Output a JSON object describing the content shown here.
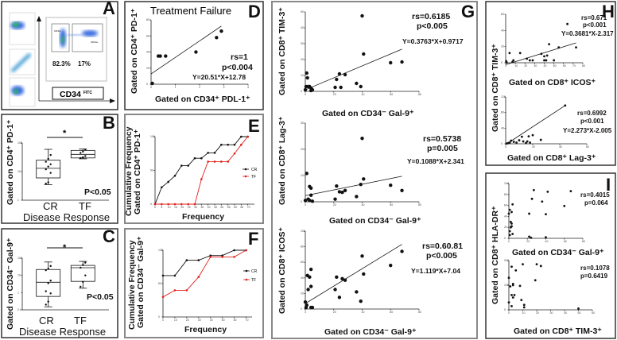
{
  "figure": {
    "panel_letters": {
      "A": "A",
      "B": "B",
      "C": "C",
      "D": "D",
      "E": "E",
      "F": "F",
      "G": "G",
      "H": "H",
      "I": "I"
    },
    "colors": {
      "cr": "#111111",
      "tf": "#e0201b",
      "flow_high": "#2ec24a",
      "flow_low": "#3a6de0"
    }
  },
  "panel_a": {
    "gate_left_pct": "82.3%",
    "gate_right_pct": "17%",
    "x_label": "CD34",
    "x_label_sup": "FITC",
    "gate_left_label": "CD34-",
    "gate_right_label": "CD34+"
  },
  "panel_b": {
    "ylabel": "Gated on CD4⁺ PD-1⁺",
    "xlabel": "Disease Response",
    "sig": "*",
    "p": "P<0.05"
  },
  "panel_c": {
    "ylabel": "Gated on CD34⁻ Gal-9⁺",
    "xlabel": "Disease Response",
    "sig": "*",
    "p": "P<0.05"
  },
  "panel_d": {
    "title": "Treatment Failure",
    "ylabel": "Gated on CD4⁺ PD-1⁺",
    "xlabel": "Gated on CD34⁺ PDL-1⁺",
    "rs": "rs=1",
    "p": "p<0.004",
    "eq": "Y=20.51*X+12.78"
  },
  "panel_e": {
    "ylabel1": "Cumulative Frequency",
    "ylabel2": "Gated on CD4⁺ PD-1⁺",
    "xlabel": "Frequency",
    "legend_cr": "CR",
    "legend_tf": "TF"
  },
  "panel_f": {
    "ylabel1": "Cumulative Frequency",
    "ylabel2": "Gated on CD34⁻ Gal-9⁺",
    "xlabel": "Frequency",
    "legend_cr": "CR",
    "legend_tf": "TF"
  },
  "panel_g": {
    "g1": {
      "ylabel": "Gated on CD8⁺ TIM-3⁺",
      "xlabel": "Gated on CD34⁻ Gal-9⁺",
      "rs": "rs=0.6185",
      "p": "p<0.005",
      "eq": "Y=0.3763*X+0.9717"
    },
    "g2": {
      "ylabel": "Gated on CD8⁺ Lag-3⁺",
      "xlabel": "Gated on CD34⁻ Gal-9⁺",
      "rs": "rs=0.5738",
      "p": "p=0.005",
      "eq": "Y=0.1088*X+2.341"
    },
    "g3": {
      "ylabel": "Gated on CD8⁺ ICOS⁺",
      "xlabel": "Gated on CD34⁻ Gal-9⁺",
      "rs": "rs=0.60.81",
      "p": "p<0.005",
      "eq": "Y=1.119*X+7.04"
    }
  },
  "panel_h": {
    "ylabel": "Gated on CD8⁺ TIM-3⁺",
    "h1": {
      "xlabel": "Gated on CD8⁺ ICOS⁺",
      "rs": "rs=0.671",
      "p": "p<0.001",
      "eq": "Y=0.3681*X-2.317"
    },
    "h2": {
      "xlabel": "Gated on CD8⁺ Lag-3⁺",
      "rs": "rs=0.6992",
      "p": "p<0.001",
      "eq": "Y=2.273*X-2.005"
    }
  },
  "panel_i": {
    "ylabel": "Gated on CD8⁺ HLA-DR⁺",
    "i1": {
      "xlabel": "Gated on CD34⁻ Gal-9⁺",
      "rs": "rs=0.4015",
      "p": "p=0.064"
    },
    "i2": {
      "xlabel": "Gated on CD8⁺ TIM-3⁺",
      "rs": "rs=0.1078",
      "p": "p=0.6419"
    }
  },
  "chart_data": [
    {
      "id": "B",
      "type": "box",
      "scale": "log",
      "ylim": [
        1,
        100
      ],
      "categories": [
        "CR",
        "TF"
      ],
      "boxes": [
        {
          "min": 3.5,
          "q1": 6,
          "median": 13,
          "q3": 25,
          "max": 60,
          "points": [
            3.8,
            4.2,
            9,
            12,
            15,
            18,
            22,
            28,
            38
          ]
        },
        {
          "min": 28,
          "q1": 30,
          "median": 40,
          "q3": 55,
          "max": 62,
          "points": [
            30,
            32,
            35,
            45,
            50,
            58
          ]
        }
      ]
    },
    {
      "id": "C",
      "type": "box",
      "scale": "log",
      "ylim": [
        0.1,
        100
      ],
      "categories": [
        "CR",
        "TF"
      ],
      "boxes": [
        {
          "min": 0.15,
          "q1": 0.6,
          "median": 4,
          "q3": 22,
          "max": 60,
          "points": [
            0.2,
            0.3,
            0.9,
            1.2,
            3.5,
            5,
            20,
            25,
            35
          ]
        },
        {
          "min": 1.8,
          "q1": 4.5,
          "median": 28,
          "q3": 38,
          "max": 65,
          "points": [
            2.2,
            4.2,
            10,
            28,
            40,
            55
          ]
        }
      ]
    },
    {
      "id": "D",
      "type": "scatter",
      "xlim": [
        0,
        4
      ],
      "ylim": [
        0,
        80
      ],
      "xticks": [
        0,
        1,
        2,
        3,
        4
      ],
      "yticks": [
        0,
        20,
        40,
        60,
        80
      ],
      "points": [
        [
          0.05,
          1
        ],
        [
          0.3,
          35
        ],
        [
          0.38,
          35
        ],
        [
          0.6,
          35
        ],
        [
          1.85,
          40
        ],
        [
          2.7,
          58
        ],
        [
          2.9,
          66
        ]
      ],
      "fit": {
        "slope": 20.51,
        "intercept": 12.78,
        "xrange": [
          0,
          2.9
        ]
      }
    },
    {
      "id": "E",
      "type": "line",
      "xlim": [
        0,
        75
      ],
      "ylim": [
        0,
        100
      ],
      "xticks": [
        0,
        5,
        10,
        15,
        20,
        25,
        30,
        35,
        40,
        45,
        50,
        55,
        60,
        65,
        70
      ],
      "yticks": [
        0,
        50,
        100
      ],
      "series": [
        {
          "name": "CR",
          "x": [
            0,
            5,
            10,
            15,
            20,
            25,
            30,
            35,
            40,
            45,
            50,
            55,
            60,
            65,
            70
          ],
          "y": [
            0,
            25,
            33,
            42,
            57,
            57,
            68,
            68,
            76,
            76,
            88,
            88,
            88,
            100,
            100
          ]
        },
        {
          "name": "TF",
          "x": [
            0,
            5,
            10,
            15,
            20,
            25,
            30,
            35,
            40,
            45,
            50,
            55,
            60,
            65,
            70
          ],
          "y": [
            0,
            0,
            0,
            0,
            0,
            0,
            0,
            37,
            63,
            63,
            63,
            63,
            75,
            88,
            100
          ]
        }
      ]
    },
    {
      "id": "F",
      "type": "line",
      "xlim": [
        0,
        75
      ],
      "ylim": [
        0,
        100
      ],
      "xticks": [
        0,
        10,
        20,
        30,
        40,
        50,
        60,
        70
      ],
      "yticks": [
        0,
        50,
        100
      ],
      "series": [
        {
          "name": "CR",
          "x": [
            0,
            10,
            20,
            30,
            40,
            50,
            60,
            70
          ],
          "y": [
            62,
            62,
            85,
            85,
            92,
            92,
            100,
            100
          ]
        },
        {
          "name": "TF",
          "x": [
            0,
            10,
            20,
            30,
            40,
            50,
            60,
            70
          ],
          "y": [
            30,
            40,
            40,
            60,
            90,
            90,
            90,
            100
          ]
        }
      ]
    },
    {
      "id": "G1",
      "type": "scatter",
      "xlim": [
        0,
        80
      ],
      "ylim": [
        0,
        50
      ],
      "xticks": [
        0,
        20,
        40,
        60,
        80
      ],
      "yticks": [
        0,
        10,
        20,
        30,
        40,
        50
      ],
      "points": [
        [
          0,
          1
        ],
        [
          0.5,
          3
        ],
        [
          1,
          11.5
        ],
        [
          1.5,
          8.5
        ],
        [
          2,
          3
        ],
        [
          3,
          3
        ],
        [
          4,
          2
        ],
        [
          5,
          1
        ],
        [
          4,
          0.5
        ],
        [
          21,
          2.5
        ],
        [
          22,
          7.5
        ],
        [
          24,
          11
        ],
        [
          25,
          2.5
        ],
        [
          28,
          10.5
        ],
        [
          36,
          5
        ],
        [
          39,
          3
        ],
        [
          40,
          47.5
        ],
        [
          41,
          23.5
        ],
        [
          60,
          18
        ],
        [
          68,
          18.5
        ]
      ],
      "fit": {
        "slope": 0.3763,
        "intercept": 0.9717,
        "xrange": [
          0,
          68
        ]
      }
    },
    {
      "id": "G2",
      "type": "scatter",
      "xlim": [
        0,
        80
      ],
      "ylim": [
        0,
        30
      ],
      "xticks": [
        0,
        20,
        40,
        60,
        80
      ],
      "yticks": [
        0,
        10,
        20,
        30
      ],
      "points": [
        [
          0,
          0.5
        ],
        [
          1,
          10.8
        ],
        [
          2,
          1
        ],
        [
          3,
          5.8
        ],
        [
          4,
          5.2
        ],
        [
          4,
          2.5
        ],
        [
          5,
          0.2
        ],
        [
          3,
          0.5
        ],
        [
          21,
          1
        ],
        [
          22,
          6
        ],
        [
          24,
          3.8
        ],
        [
          26,
          3.6
        ],
        [
          28,
          4.3
        ],
        [
          36,
          2
        ],
        [
          39,
          6.6
        ],
        [
          40,
          24.2
        ],
        [
          41,
          8.7
        ],
        [
          60,
          6.3
        ],
        [
          68,
          4.3
        ]
      ],
      "fit": {
        "slope": 0.1088,
        "intercept": 2.341,
        "xrange": [
          0,
          68
        ]
      }
    },
    {
      "id": "G3",
      "type": "scatter",
      "xlim": [
        0,
        80
      ],
      "ylim": [
        0,
        100
      ],
      "xticks": [
        0,
        20,
        40,
        60,
        80
      ],
      "yticks": [
        0,
        20,
        40,
        60,
        80,
        100
      ],
      "points": [
        [
          0,
          9
        ],
        [
          0.5,
          2
        ],
        [
          1,
          5
        ],
        [
          1.5,
          43
        ],
        [
          2,
          25
        ],
        [
          3,
          41
        ],
        [
          4,
          51
        ],
        [
          4,
          29
        ],
        [
          4,
          2
        ],
        [
          5,
          2
        ],
        [
          21,
          25
        ],
        [
          22,
          41
        ],
        [
          24,
          15
        ],
        [
          26,
          39
        ],
        [
          28,
          37
        ],
        [
          36,
          22
        ],
        [
          39,
          10
        ],
        [
          40,
          68
        ],
        [
          41,
          45
        ],
        [
          60,
          56
        ],
        [
          68,
          74
        ]
      ],
      "fit": {
        "slope": 1.119,
        "intercept": 7.04,
        "xrange": [
          0,
          68
        ]
      }
    },
    {
      "id": "H1",
      "type": "scatter",
      "xlim": [
        0,
        80
      ],
      "ylim": [
        0,
        60
      ],
      "xticks": [
        0,
        10,
        20,
        30,
        40,
        50,
        60,
        70,
        80
      ],
      "yticks": [
        0,
        20,
        40,
        60
      ],
      "points": [
        [
          0.5,
          2
        ],
        [
          1,
          0.5
        ],
        [
          4,
          12
        ],
        [
          7,
          1
        ],
        [
          8,
          3
        ],
        [
          15,
          12
        ],
        [
          22,
          5
        ],
        [
          25,
          3
        ],
        [
          28,
          3
        ],
        [
          37,
          11
        ],
        [
          40,
          3
        ],
        [
          40,
          8
        ],
        [
          43,
          9
        ],
        [
          42,
          3
        ],
        [
          45,
          23
        ],
        [
          50,
          3
        ],
        [
          55,
          19
        ],
        [
          64,
          48
        ],
        [
          73,
          19
        ]
      ],
      "fit": {
        "slope": 0.3681,
        "intercept": -2.317,
        "xrange": [
          0,
          73
        ]
      }
    },
    {
      "id": "H2",
      "type": "scatter",
      "xlim": [
        0,
        60
      ],
      "ylim": [
        0,
        120
      ],
      "xticks": [
        0,
        20,
        40,
        60
      ],
      "yticks": [
        0,
        40,
        80,
        120
      ],
      "points": [
        [
          1,
          1
        ],
        [
          2,
          2
        ],
        [
          3,
          3
        ],
        [
          4,
          8
        ],
        [
          6,
          5
        ],
        [
          8,
          3
        ],
        [
          10,
          9
        ],
        [
          12,
          18
        ],
        [
          13,
          6
        ],
        [
          15,
          2
        ],
        [
          17,
          19
        ],
        [
          16,
          6
        ],
        [
          18,
          3
        ],
        [
          20,
          22
        ],
        [
          26,
          10
        ],
        [
          44,
          98
        ]
      ],
      "fit": {
        "slope": 2.273,
        "intercept": -2.005,
        "xrange": [
          0,
          44
        ]
      }
    },
    {
      "id": "I1",
      "type": "scatter",
      "xlim": [
        0,
        80
      ],
      "ylim": [
        0,
        100
      ],
      "xticks": [
        0,
        20,
        40,
        60,
        80
      ],
      "yticks": [
        0,
        20,
        40,
        60,
        80,
        100
      ],
      "points": [
        [
          0,
          45
        ],
        [
          1,
          52
        ],
        [
          2,
          30
        ],
        [
          1,
          13
        ],
        [
          1,
          6
        ],
        [
          2,
          20
        ],
        [
          3,
          48
        ],
        [
          3,
          27
        ],
        [
          3,
          22
        ],
        [
          4,
          62
        ],
        [
          4,
          8
        ],
        [
          22,
          3
        ],
        [
          22,
          45
        ],
        [
          24,
          1
        ],
        [
          25,
          72
        ],
        [
          27,
          88
        ],
        [
          36,
          67
        ],
        [
          40,
          44
        ],
        [
          40,
          2
        ],
        [
          42,
          85
        ],
        [
          60,
          59
        ],
        [
          67,
          86
        ]
      ]
    },
    {
      "id": "I2",
      "type": "scatter",
      "xlim": [
        0,
        60
      ],
      "ylim": [
        0,
        200
      ],
      "xticks": [
        0,
        10,
        20,
        30,
        40,
        50,
        60
      ],
      "yticks": [
        0,
        100,
        200
      ],
      "points": [
        [
          0,
          130
        ],
        [
          0,
          30
        ],
        [
          1,
          95
        ],
        [
          2,
          60
        ],
        [
          2,
          15
        ],
        [
          2,
          175
        ],
        [
          3,
          100
        ],
        [
          3,
          50
        ],
        [
          3,
          105
        ],
        [
          4,
          60
        ],
        [
          5,
          160
        ],
        [
          8,
          97
        ],
        [
          9,
          40
        ],
        [
          10,
          185
        ],
        [
          11,
          10
        ],
        [
          11,
          20
        ],
        [
          19,
          120
        ],
        [
          20,
          185
        ],
        [
          23,
          178
        ],
        [
          50,
          5
        ]
      ]
    }
  ]
}
